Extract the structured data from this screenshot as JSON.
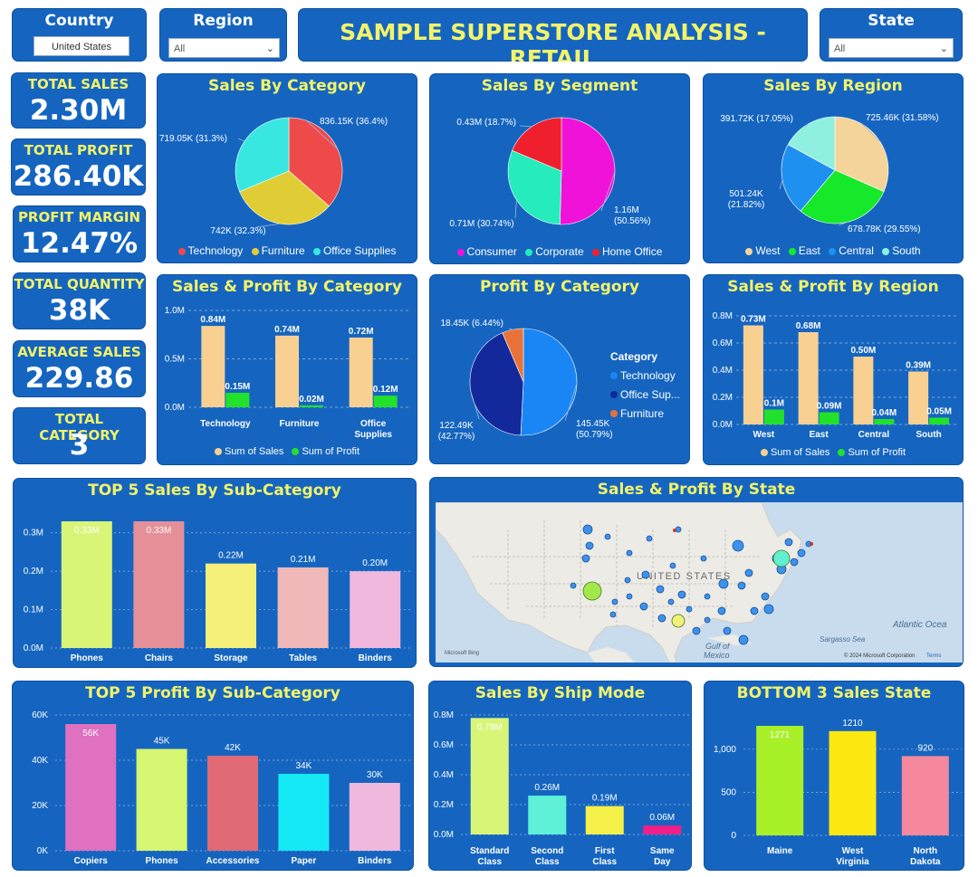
{
  "header": {
    "title": "SAMPLE SUPERSTORE ANALYSIS - RETAIL",
    "country": {
      "label": "Country",
      "value": "United States"
    },
    "region": {
      "label": "Region",
      "value": "All"
    },
    "state": {
      "label": "State",
      "value": "All"
    }
  },
  "kpis": [
    {
      "label": "TOTAL SALES",
      "value": "2.30M"
    },
    {
      "label": "TOTAL PROFIT",
      "value": "286.40K"
    },
    {
      "label": "PROFIT MARGIN",
      "value": "12.47%"
    },
    {
      "label": "TOTAL QUANTITY",
      "value": "38K"
    },
    {
      "label": "AVERAGE SALES",
      "value": "229.86"
    },
    {
      "label": "TOTAL CATEGORY",
      "value": "3"
    }
  ],
  "map": {
    "title": "Sales & Profit By State",
    "country_label": "UNITED STATES",
    "labels": [
      "Atlantic Ocea",
      "Sargasso Sea",
      "Gulf of",
      "Mexico"
    ],
    "attribution": "© 2024 Microsoft Corporation",
    "terms": "Terms",
    "provider": "Microsoft Bing"
  },
  "colors": {
    "panel": "#1565c0",
    "title": "#f2f36a",
    "sales": "#f7d092",
    "profit": "#22e12b"
  },
  "chart_data": [
    {
      "id": "sales_by_category",
      "type": "pie",
      "title": "Sales By Category",
      "labels": [
        "Technology",
        "Furniture",
        "Office Supplies"
      ],
      "values": [
        836.15,
        742,
        719.05
      ],
      "data_labels": [
        "836.15K (36.4%)",
        "742K (32.3%)",
        "719.05K (31.3%)"
      ],
      "colors": [
        "#ef4a4a",
        "#e0cd35",
        "#38e8e0"
      ]
    },
    {
      "id": "sales_by_segment",
      "type": "pie",
      "title": "Sales By Segment",
      "labels": [
        "Consumer",
        "Corporate",
        "Home Office"
      ],
      "values": [
        1.16,
        0.71,
        0.43
      ],
      "data_labels": [
        "1.16M (50.56%)",
        "0.71M (30.74%)",
        "0.43M (18.7%)"
      ],
      "colors": [
        "#f012d8",
        "#26ecbc",
        "#ef1f2d"
      ]
    },
    {
      "id": "sales_by_region",
      "type": "pie",
      "title": "Sales By Region",
      "labels": [
        "West",
        "East",
        "Central",
        "South"
      ],
      "values": [
        725.46,
        678.78,
        501.24,
        391.72
      ],
      "data_labels": [
        "725.46K (31.58%)",
        "678.78K (29.55%)",
        "501.24K (21.82%)",
        "391.72K (17.05%)"
      ],
      "colors": [
        "#f5d49a",
        "#16e82a",
        "#1e90f0",
        "#8ff0e0"
      ]
    },
    {
      "id": "sales_profit_by_category",
      "type": "bar",
      "title": "Sales & Profit By Category",
      "categories": [
        "Technology",
        "Furniture",
        "Office Supplies"
      ],
      "series": [
        {
          "name": "Sum of Sales",
          "values": [
            0.84,
            0.74,
            0.72
          ],
          "labels": [
            "0.84M",
            "0.74M",
            "0.72M"
          ]
        },
        {
          "name": "Sum of Profit",
          "values": [
            0.15,
            0.02,
            0.12
          ],
          "labels": [
            "0.15M",
            "0.02M",
            "0.12M"
          ]
        }
      ],
      "yticks": [
        "0.0M",
        "0.5M",
        "1.0M"
      ],
      "ylim": [
        0,
        1.0
      ]
    },
    {
      "id": "profit_by_category",
      "type": "pie",
      "title": "Profit By Category",
      "legend_title": "Category",
      "labels": [
        "Technology",
        "Office Supplies",
        "Furniture"
      ],
      "legend_labels": [
        "Technology",
        "Office Sup...",
        "Furniture"
      ],
      "values": [
        145.45,
        122.49,
        18.45
      ],
      "data_labels": [
        "145.45K (50.79%)",
        "122.49K (42.77%)",
        "18.45K (6.44%)"
      ],
      "colors": [
        "#1a86f5",
        "#13289a",
        "#e8723a"
      ]
    },
    {
      "id": "sales_profit_by_region",
      "type": "bar",
      "title": "Sales & Profit By Region",
      "categories": [
        "West",
        "East",
        "Central",
        "South"
      ],
      "series": [
        {
          "name": "Sum of Sales",
          "values": [
            0.73,
            0.68,
            0.5,
            0.39
          ],
          "labels": [
            "0.73M",
            "0.68M",
            "0.50M",
            "0.39M"
          ]
        },
        {
          "name": "Sum of Profit",
          "values": [
            0.11,
            0.09,
            0.04,
            0.05
          ],
          "labels": [
            "0.1M",
            "0.09M",
            "0.04M",
            "0.05M"
          ]
        }
      ],
      "yticks": [
        "0.0M",
        "0.2M",
        "0.4M",
        "0.6M",
        "0.8M"
      ],
      "ylim": [
        0,
        0.8
      ]
    },
    {
      "id": "top5_sales_subcategory",
      "type": "bar",
      "title": "TOP 5 Sales By Sub-Category",
      "categories": [
        "Phones",
        "Chairs",
        "Storage",
        "Tables",
        "Binders"
      ],
      "values": [
        0.33,
        0.33,
        0.22,
        0.21,
        0.2
      ],
      "labels": [
        "0.33M",
        "0.33M",
        "0.22M",
        "0.21M",
        "0.20M"
      ],
      "colors": [
        "#d9f578",
        "#e59098",
        "#f5f07a",
        "#f0b8b8",
        "#f0b8dc"
      ],
      "yticks": [
        "0.0M",
        "0.1M",
        "0.2M",
        "0.3M"
      ],
      "ylim": [
        0,
        0.33
      ]
    },
    {
      "id": "top5_profit_subcategory",
      "type": "bar",
      "title": "TOP 5 Profit By Sub-Category",
      "categories": [
        "Copiers",
        "Phones",
        "Accessories",
        "Paper",
        "Binders"
      ],
      "values": [
        56,
        45,
        42,
        34,
        30
      ],
      "labels": [
        "56K",
        "45K",
        "42K",
        "34K",
        "30K"
      ],
      "colors": [
        "#e070c0",
        "#d6f570",
        "#e06a76",
        "#15e8f5",
        "#f0b8dc"
      ],
      "yticks": [
        "0K",
        "20K",
        "40K",
        "60K"
      ],
      "ylim": [
        0,
        60
      ]
    },
    {
      "id": "sales_by_ship_mode",
      "type": "bar",
      "title": "Sales By Ship Mode",
      "categories": [
        "Standard Class",
        "Second Class",
        "First Class",
        "Same Day"
      ],
      "values": [
        0.78,
        0.26,
        0.19,
        0.06
      ],
      "labels": [
        "0.78M",
        "0.26M",
        "0.19M",
        "0.06M"
      ],
      "colors": [
        "#d9f578",
        "#5ef0d8",
        "#f5f04a",
        "#f0208a"
      ],
      "yticks": [
        "0.0M",
        "0.2M",
        "0.4M",
        "0.6M",
        "0.8M"
      ],
      "ylim": [
        0,
        0.8
      ]
    },
    {
      "id": "bottom3_sales_state",
      "type": "bar",
      "title": "BOTTOM 3 Sales State",
      "categories": [
        "Maine",
        "West Virginia",
        "North Dakota"
      ],
      "values": [
        1271,
        1210,
        920
      ],
      "labels": [
        "1271",
        "1210",
        "920"
      ],
      "colors": [
        "#a8f028",
        "#fde812",
        "#f5889c"
      ],
      "yticks": [
        "0",
        "500",
        "1,000"
      ],
      "ylim": [
        0,
        1271
      ]
    }
  ]
}
